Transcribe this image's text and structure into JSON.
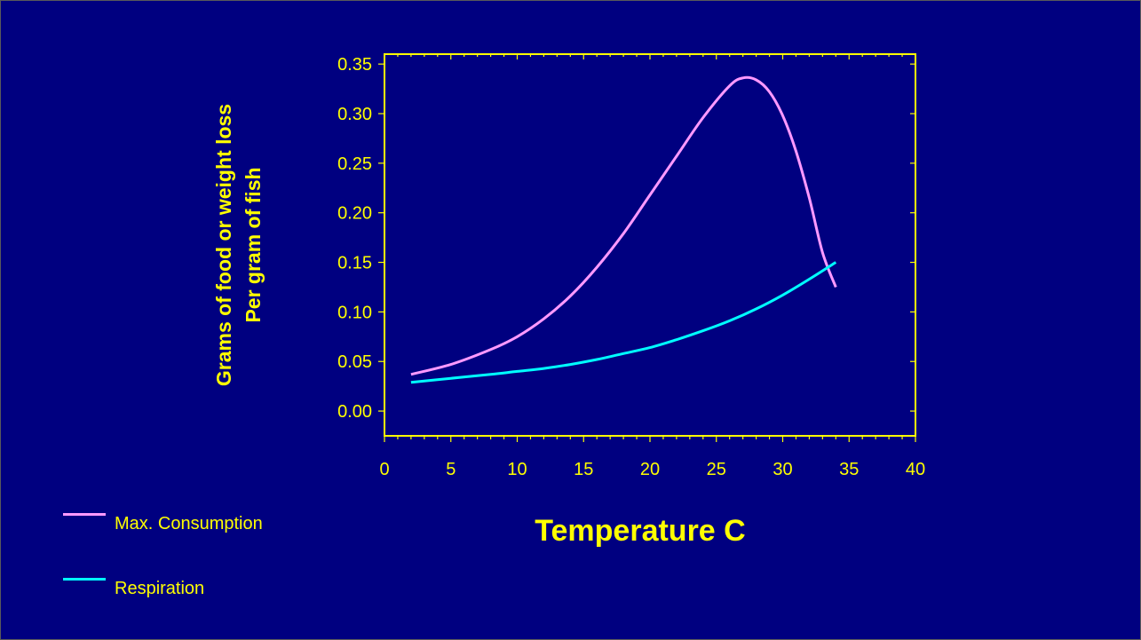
{
  "chart_data": {
    "type": "line",
    "ylabel": [
      "Grams of food or weight loss",
      "Per gram of fish"
    ],
    "xlabel": "Temperature C",
    "xlim": [
      0,
      40
    ],
    "ylim": [
      -0.025,
      0.36
    ],
    "x_ticks": [
      "0",
      "5",
      "10",
      "15",
      "20",
      "25",
      "30",
      "35",
      "40"
    ],
    "y_ticks": [
      "0.00",
      "0.05",
      "0.10",
      "0.15",
      "0.20",
      "0.25",
      "0.30",
      "0.35"
    ],
    "legend_placement": "bottom-left",
    "series": [
      {
        "name": "Max. Consumption",
        "color": "#ff99ff",
        "x": [
          2,
          5,
          8,
          10,
          12,
          14,
          16,
          18,
          20,
          22,
          24,
          26,
          27,
          28,
          29,
          30,
          31,
          32,
          33,
          34
        ],
        "y": [
          0.037,
          0.047,
          0.062,
          0.075,
          0.093,
          0.116,
          0.145,
          0.179,
          0.218,
          0.257,
          0.296,
          0.328,
          0.336,
          0.334,
          0.322,
          0.298,
          0.262,
          0.215,
          0.16,
          0.125
        ]
      },
      {
        "name": "Respiration",
        "color": "#00ffff",
        "x": [
          2,
          5,
          8,
          10,
          12,
          14,
          16,
          18,
          20,
          22,
          24,
          26,
          28,
          30,
          32,
          34
        ],
        "y": [
          0.029,
          0.033,
          0.037,
          0.04,
          0.043,
          0.047,
          0.052,
          0.058,
          0.064,
          0.072,
          0.081,
          0.091,
          0.103,
          0.117,
          0.133,
          0.15
        ]
      }
    ]
  }
}
